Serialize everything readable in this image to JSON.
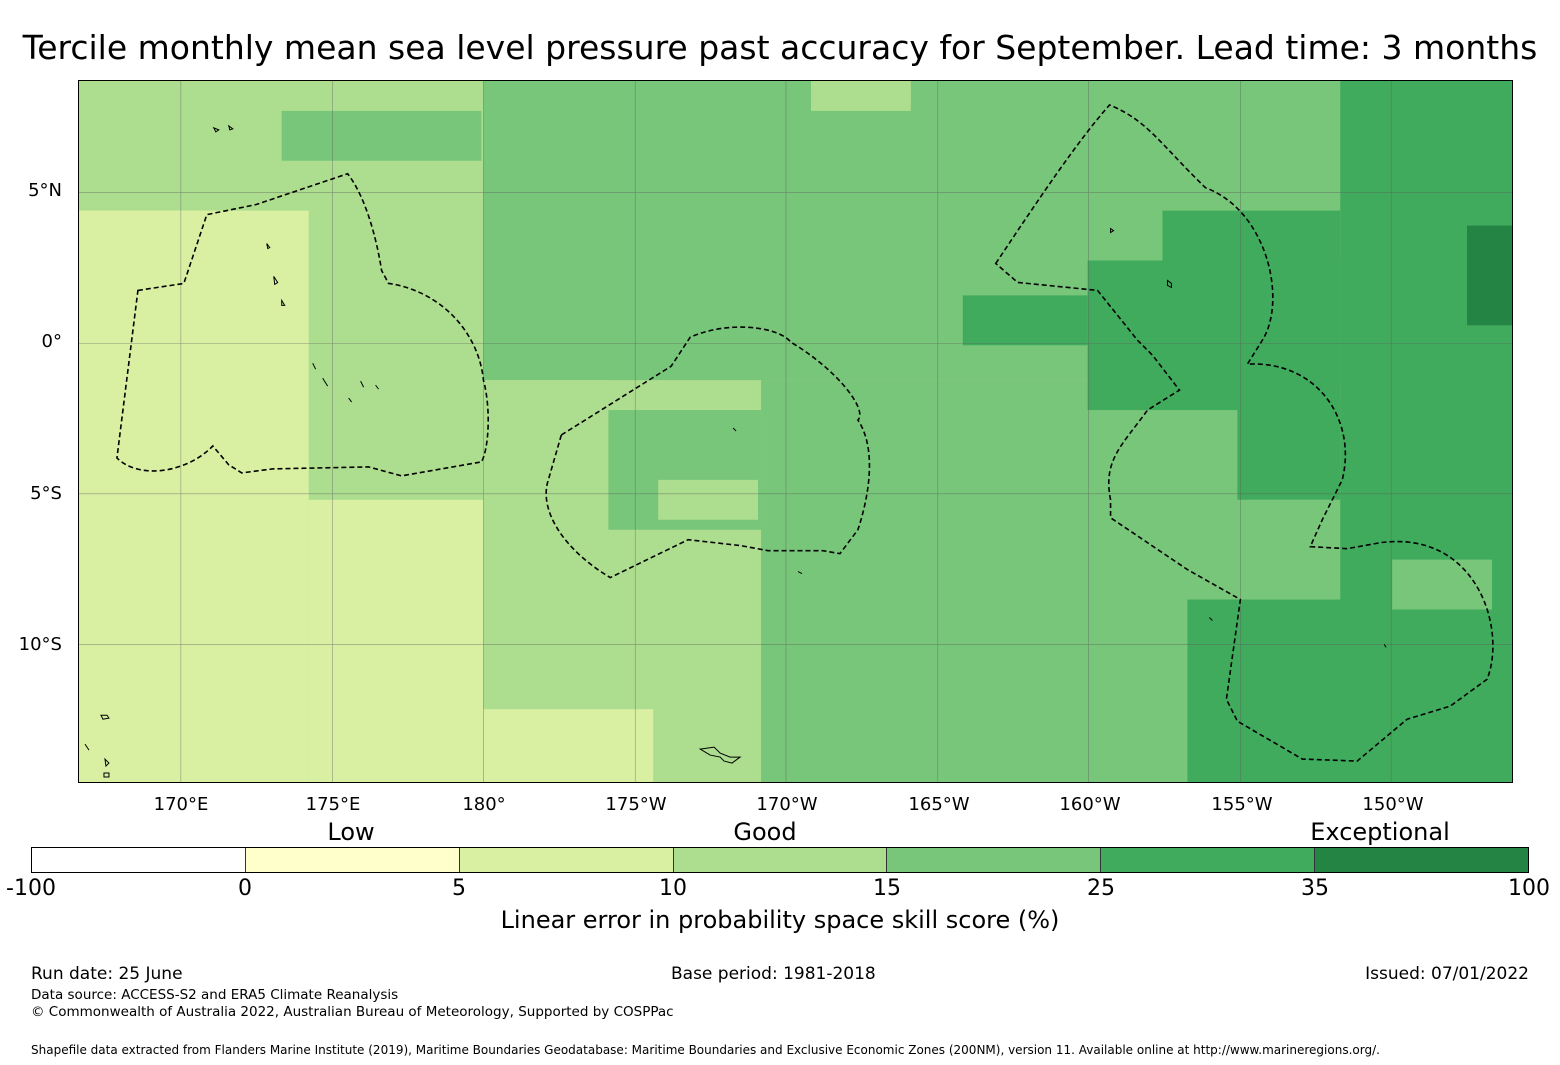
{
  "title": "Tercile monthly mean sea level pressure past accuracy for September. Lead time: 3 months",
  "map": {
    "lat_labels": [
      "5°N",
      "0°",
      "5°S",
      "10°S"
    ],
    "lon_labels": [
      "170°E",
      "175°E",
      "180°",
      "175°W",
      "170°W",
      "165°W",
      "160°W",
      "155°W",
      "150°W"
    ],
    "legend_categories": [
      "Low",
      "Good",
      "Exceptional"
    ],
    "colors": {
      "c0": "#ffffff",
      "c1": "#ffffcc",
      "c2": "#d9f0a3",
      "c3": "#addd8e",
      "c4": "#78c679",
      "c5": "#41ab5d",
      "c6": "#238443"
    }
  },
  "colorbar": {
    "ticks": [
      "-100",
      "0",
      "5",
      "10",
      "15",
      "25",
      "35",
      "100"
    ],
    "label": "Linear error in probability space skill score (%)"
  },
  "footer": {
    "run_date": "Run date: 25 June",
    "base_period": "Base period: 1981-2018",
    "issued": "Issued: 07/01/2022",
    "data_source": "Data source: ACCESS-S2 and ERA5 Climate Reanalysis",
    "copyright": "© Commonwealth of Australia 2022, Australian Bureau of Meteorology, Supported by COSPPac",
    "shapefile": "Shapefile data extracted from Flanders Marine Institute (2019), Maritime Boundaries Geodatabase: Maritime Boundaries and Exclusive Economic Zones (200NM), version 11. Available online at http://www.marineregions.org/."
  }
}
